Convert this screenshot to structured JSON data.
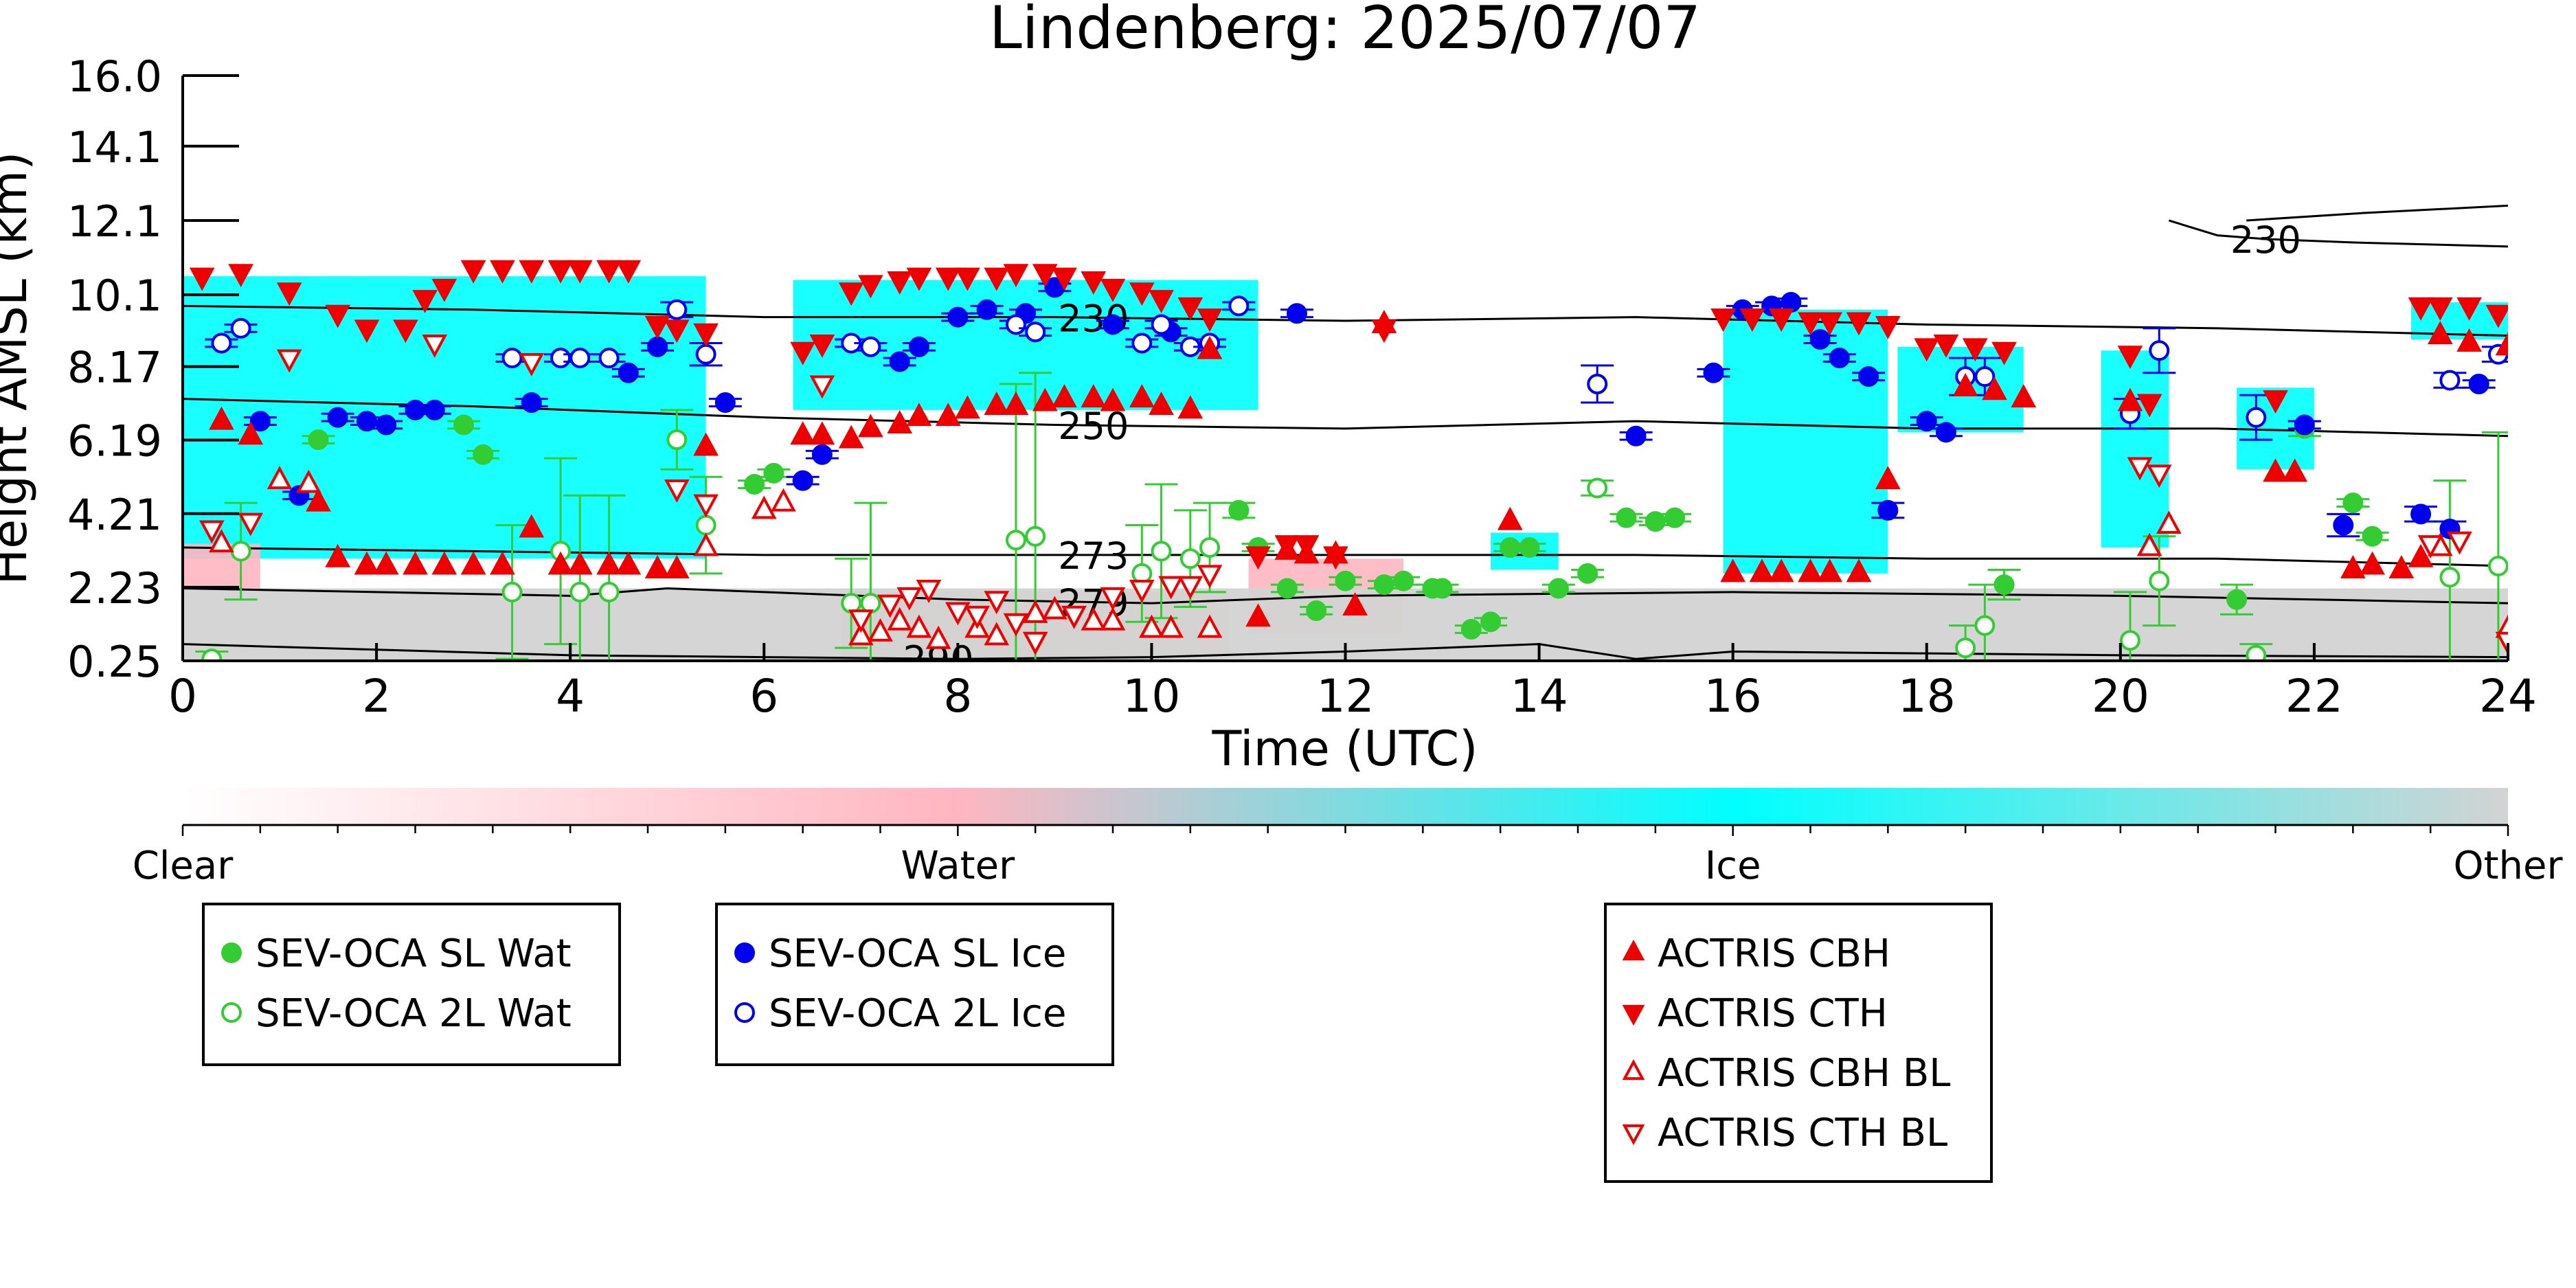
{
  "chart_data": {
    "type": "scatter",
    "title": "Lindenberg: 2025/07/07",
    "xlabel": "Time (UTC)",
    "ylabel": "Height AMSL (km)",
    "xlim": [
      0,
      24
    ],
    "ylim": [
      0.25,
      16.0
    ],
    "x_ticks": [
      0,
      2,
      4,
      6,
      8,
      10,
      12,
      14,
      16,
      18,
      20,
      22,
      24
    ],
    "y_ticks": [
      "0.25",
      "2.23",
      "4.21",
      "6.19",
      "8.17",
      "10.1",
      "12.1",
      "14.1",
      "16.0"
    ],
    "y_tick_values": [
      0.25,
      2.23,
      4.21,
      6.19,
      8.17,
      10.1,
      12.1,
      14.1,
      16.0
    ],
    "colorbar": {
      "categories": [
        "Clear",
        "Water",
        "Ice",
        "Other"
      ],
      "colors": [
        "#ffffff",
        "#ffb6c1",
        "#00ffff",
        "#d3d3d3"
      ]
    },
    "cloud_regions": [
      {
        "type": "Ice",
        "x0": 0.0,
        "x1": 5.4,
        "y0": 3.0,
        "y1": 10.6
      },
      {
        "type": "Ice",
        "x0": 6.3,
        "x1": 11.1,
        "y0": 7.0,
        "y1": 10.5
      },
      {
        "type": "Ice",
        "x0": 15.9,
        "x1": 17.6,
        "y0": 2.6,
        "y1": 9.7
      },
      {
        "type": "Ice",
        "x0": 17.7,
        "x1": 19.0,
        "y0": 6.4,
        "y1": 8.7
      },
      {
        "type": "Ice",
        "x0": 19.8,
        "x1": 20.5,
        "y0": 3.3,
        "y1": 8.6
      },
      {
        "type": "Ice",
        "x0": 21.2,
        "x1": 22.0,
        "y0": 5.4,
        "y1": 7.6
      },
      {
        "type": "Ice",
        "x0": 23.0,
        "x1": 24.0,
        "y0": 8.9,
        "y1": 9.9
      },
      {
        "type": "Ice",
        "x0": 13.5,
        "x1": 14.2,
        "y0": 2.7,
        "y1": 3.7
      },
      {
        "type": "Water",
        "x0": 6.8,
        "x1": 10.8,
        "y0": 0.35,
        "y1": 2.1
      },
      {
        "type": "Water",
        "x0": 11.0,
        "x1": 12.6,
        "y0": 1.0,
        "y1": 3.0
      },
      {
        "type": "Water",
        "x0": 0.0,
        "x1": 0.8,
        "y0": 2.2,
        "y1": 3.4
      },
      {
        "type": "Other",
        "x0": 0.0,
        "x1": 24.0,
        "y0": 0.25,
        "y1": 2.2
      }
    ],
    "isotherms": [
      {
        "label": "230",
        "label_x": 9.4,
        "x": [
          0,
          3,
          6,
          9,
          12,
          15,
          18,
          21,
          24
        ],
        "y": [
          9.8,
          9.7,
          9.5,
          9.5,
          9.4,
          9.5,
          9.3,
          9.2,
          9.0
        ]
      },
      {
        "label": "230",
        "label_x": 21.5,
        "x": [
          20.5,
          21.0,
          21.5,
          22.5,
          24
        ],
        "y": [
          12.1,
          11.7,
          11.6,
          11.5,
          11.4
        ]
      },
      {
        "label": "",
        "label_x": 0,
        "x": [
          21.3,
          22.5,
          24
        ],
        "y": [
          12.1,
          12.3,
          12.5
        ]
      },
      {
        "label": "250",
        "label_x": 9.4,
        "x": [
          0,
          3,
          6,
          9,
          12,
          15,
          18,
          21,
          24
        ],
        "y": [
          7.3,
          7.1,
          6.8,
          6.6,
          6.5,
          6.7,
          6.5,
          6.5,
          6.3
        ]
      },
      {
        "label": "273",
        "label_x": 9.4,
        "x": [
          0,
          3,
          6,
          9,
          12,
          15,
          18,
          21,
          24
        ],
        "y": [
          3.3,
          3.2,
          3.1,
          3.1,
          3.1,
          3.1,
          3.0,
          3.0,
          2.8
        ]
      },
      {
        "label": "279",
        "label_x": 9.4,
        "x": [
          0,
          2,
          4,
          5,
          6,
          8,
          10,
          12,
          16,
          20,
          24
        ],
        "y": [
          2.2,
          2.1,
          2.0,
          2.2,
          2.1,
          1.9,
          1.8,
          2.0,
          2.1,
          2.0,
          1.8
        ]
      },
      {
        "label": "290",
        "label_x": 7.8,
        "x": [
          0,
          2,
          4,
          6,
          8,
          10,
          12,
          13,
          14,
          14.5,
          15,
          16,
          18,
          20,
          24
        ],
        "y": [
          0.7,
          0.55,
          0.4,
          0.35,
          0.3,
          0.35,
          0.5,
          0.6,
          0.7,
          0.5,
          0.3,
          0.5,
          0.45,
          0.4,
          0.35
        ]
      }
    ],
    "series": [
      {
        "name": "SEV-OCA SL Wat",
        "marker": "circle",
        "filled": true,
        "color": "#33cc33",
        "x": [
          1.4,
          2.9,
          3.1,
          5.9,
          6.1,
          10.9,
          11.1,
          11.4,
          11.7,
          12.0,
          12.4,
          12.6,
          12.9,
          13.0,
          13.3,
          13.5,
          13.7,
          13.9,
          14.2,
          14.5,
          14.9,
          15.2,
          15.4,
          18.8,
          21.2,
          21.9,
          22.4,
          22.6
        ],
        "y": [
          6.2,
          6.6,
          5.8,
          5.0,
          5.3,
          4.3,
          3.3,
          2.2,
          1.6,
          2.4,
          2.3,
          2.4,
          2.2,
          2.2,
          1.1,
          1.3,
          3.3,
          3.3,
          2.2,
          2.6,
          4.1,
          4.0,
          4.1,
          2.3,
          1.9,
          6.5,
          4.5,
          3.6
        ],
        "err": [
          0.1,
          0.1,
          0.1,
          0.1,
          0.1,
          0.2,
          0.1,
          0.1,
          0.1,
          0.1,
          0.1,
          0.1,
          0.1,
          0.1,
          0.1,
          0.1,
          0.1,
          0.1,
          0.1,
          0.1,
          0.1,
          0.1,
          0.1,
          0.4,
          0.4,
          0.2,
          0.1,
          0.1
        ]
      },
      {
        "name": "SEV-OCA 2L Wat",
        "marker": "circle",
        "filled": false,
        "color": "#33cc33",
        "x": [
          0.3,
          0.6,
          3.4,
          3.9,
          4.1,
          4.4,
          5.1,
          5.4,
          6.9,
          7.1,
          8.6,
          8.8,
          9.9,
          10.1,
          10.4,
          10.6,
          14.6,
          18.4,
          18.6,
          20.1,
          20.4,
          21.4,
          23.4,
          23.9
        ],
        "y": [
          0.3,
          3.2,
          2.1,
          3.2,
          2.1,
          2.1,
          6.2,
          3.9,
          1.8,
          1.8,
          3.5,
          3.6,
          2.6,
          3.2,
          3.0,
          3.3,
          4.9,
          0.6,
          1.2,
          0.8,
          2.4,
          0.4,
          2.5,
          2.8
        ],
        "err": [
          0.2,
          1.3,
          1.8,
          2.5,
          2.6,
          2.6,
          0.8,
          1.3,
          1.2,
          2.7,
          4.2,
          4.4,
          1.3,
          1.8,
          1.3,
          1.2,
          0.2,
          0.6,
          1.1,
          1.3,
          1.2,
          0.3,
          2.6,
          3.6
        ]
      },
      {
        "name": "SEV-OCA SL Ice",
        "marker": "circle",
        "filled": true,
        "color": "#0000ee",
        "x": [
          0.8,
          1.2,
          1.6,
          1.9,
          2.1,
          2.4,
          2.6,
          3.6,
          4.6,
          4.9,
          5.6,
          6.4,
          6.6,
          7.4,
          7.6,
          8.0,
          8.3,
          8.7,
          9.0,
          9.6,
          10.2,
          11.5,
          15.0,
          15.8,
          16.1,
          16.4,
          16.6,
          16.9,
          17.1,
          17.4,
          17.6,
          18.0,
          18.2,
          21.9,
          22.3,
          23.1,
          23.4,
          23.7
        ],
        "y": [
          6.7,
          4.7,
          6.8,
          6.7,
          6.6,
          7.0,
          7.0,
          7.2,
          8.0,
          8.7,
          7.2,
          5.1,
          5.8,
          8.3,
          8.7,
          9.5,
          9.7,
          9.6,
          10.3,
          9.3,
          9.1,
          9.6,
          6.3,
          8.0,
          9.7,
          9.8,
          9.9,
          8.9,
          8.4,
          7.9,
          4.3,
          6.7,
          6.4,
          6.6,
          3.9,
          4.2,
          3.8,
          7.7
        ],
        "err": [
          0.1,
          0.1,
          0.1,
          0.1,
          0.1,
          0.1,
          0.1,
          0.1,
          0.1,
          0.1,
          0.1,
          0.1,
          0.1,
          0.1,
          0.1,
          0.1,
          0.1,
          0.1,
          0.1,
          0.1,
          0.1,
          0.1,
          0.1,
          0.1,
          0.1,
          0.1,
          0.1,
          0.1,
          0.1,
          0.1,
          0.2,
          0.1,
          0.1,
          0.1,
          0.3,
          0.2,
          0.2,
          0.1
        ]
      },
      {
        "name": "SEV-OCA 2L Ice",
        "marker": "circle",
        "filled": false,
        "color": "#0000ee",
        "x": [
          0.4,
          0.6,
          3.4,
          3.9,
          4.1,
          4.4,
          5.1,
          5.4,
          6.9,
          7.1,
          8.6,
          8.8,
          9.9,
          10.1,
          10.4,
          10.6,
          10.9,
          14.6,
          18.4,
          18.6,
          20.1,
          20.4,
          21.4,
          23.4,
          23.9
        ],
        "y": [
          8.8,
          9.2,
          8.4,
          8.4,
          8.4,
          8.4,
          9.7,
          8.5,
          8.8,
          8.7,
          9.3,
          9.1,
          8.8,
          9.3,
          8.7,
          8.8,
          9.8,
          7.7,
          7.9,
          7.9,
          6.9,
          8.6,
          6.8,
          7.8,
          8.5
        ],
        "err": [
          0.1,
          0.1,
          0.1,
          0.1,
          0.1,
          0.1,
          0.2,
          0.3,
          0.1,
          0.1,
          0.1,
          0.1,
          0.1,
          0.1,
          0.1,
          0.1,
          0.1,
          0.5,
          0.5,
          0.5,
          0.4,
          0.6,
          0.6,
          0.2,
          0.2
        ]
      },
      {
        "name": "ACTRIS CBH",
        "marker": "triangle-up",
        "filled": true,
        "color": "#ee0000",
        "x": [
          0.4,
          0.7,
          1.4,
          1.6,
          1.9,
          2.1,
          2.4,
          2.7,
          3.0,
          3.3,
          3.6,
          3.9,
          4.1,
          4.4,
          4.6,
          4.9,
          5.1,
          5.4,
          6.4,
          6.6,
          6.9,
          7.1,
          7.4,
          7.6,
          7.9,
          8.1,
          8.4,
          8.6,
          8.9,
          9.1,
          9.4,
          9.6,
          9.9,
          10.1,
          10.4,
          10.6,
          11.1,
          11.4,
          11.6,
          11.9,
          12.1,
          12.4,
          13.7,
          16.0,
          16.3,
          16.5,
          16.8,
          17.0,
          17.3,
          17.6,
          18.4,
          18.7,
          19.0,
          20.1,
          21.6,
          21.8,
          22.4,
          22.6,
          22.9,
          23.1,
          23.3,
          23.6,
          24.0
        ],
        "y": [
          6.7,
          6.3,
          4.5,
          3.0,
          2.8,
          2.8,
          2.8,
          2.8,
          2.8,
          2.8,
          3.8,
          2.8,
          2.8,
          2.8,
          2.8,
          2.7,
          2.7,
          6.0,
          6.3,
          6.3,
          6.2,
          6.5,
          6.6,
          6.8,
          6.8,
          7.0,
          7.1,
          7.1,
          7.2,
          7.3,
          7.3,
          7.2,
          7.3,
          7.1,
          7.0,
          8.6,
          1.4,
          3.2,
          3.1,
          3.1,
          1.7,
          9.3,
          4.0,
          2.6,
          2.6,
          2.6,
          2.6,
          2.6,
          2.6,
          5.1,
          7.6,
          7.5,
          7.3,
          7.2,
          5.3,
          5.3,
          2.7,
          2.8,
          2.7,
          3.0,
          9.0,
          8.8,
          8.7
        ],
        "err": []
      },
      {
        "name": "ACTRIS CTH",
        "marker": "triangle-down",
        "filled": true,
        "color": "#ee0000",
        "x": [
          0.2,
          0.6,
          1.1,
          1.6,
          1.9,
          2.3,
          2.5,
          2.7,
          3.0,
          3.3,
          3.6,
          3.9,
          4.1,
          4.4,
          4.6,
          4.9,
          5.1,
          5.4,
          6.4,
          6.6,
          6.9,
          7.1,
          7.4,
          7.6,
          7.9,
          8.1,
          8.4,
          8.6,
          8.9,
          9.1,
          9.4,
          9.6,
          9.9,
          10.1,
          10.4,
          10.6,
          11.1,
          11.4,
          11.6,
          11.9,
          12.4,
          15.9,
          16.2,
          16.5,
          16.8,
          17.0,
          17.3,
          17.6,
          18.0,
          18.2,
          18.5,
          18.8,
          20.1,
          20.3,
          21.6,
          23.1,
          23.3,
          23.6,
          23.9
        ],
        "y": [
          10.6,
          10.7,
          10.2,
          9.6,
          9.2,
          9.2,
          10.0,
          10.3,
          10.8,
          10.8,
          10.8,
          10.8,
          10.8,
          10.8,
          10.8,
          9.3,
          9.2,
          9.1,
          8.6,
          8.8,
          10.2,
          10.4,
          10.5,
          10.6,
          10.6,
          10.6,
          10.6,
          10.7,
          10.7,
          10.6,
          10.5,
          10.3,
          10.2,
          10.0,
          9.8,
          9.5,
          3.1,
          3.4,
          3.4,
          3.1,
          9.2,
          9.5,
          9.5,
          9.5,
          9.4,
          9.4,
          9.4,
          9.3,
          8.7,
          8.8,
          8.7,
          8.6,
          8.5,
          7.2,
          7.3,
          9.8,
          9.8,
          9.8,
          9.6
        ],
        "err": []
      },
      {
        "name": "ACTRIS CBH BL",
        "marker": "triangle-up",
        "filled": false,
        "color": "#ee0000",
        "x": [
          0.4,
          1.0,
          1.3,
          5.4,
          6.0,
          6.2,
          7.0,
          7.2,
          7.4,
          7.6,
          7.8,
          8.2,
          8.4,
          8.8,
          9.0,
          9.4,
          9.6,
          10.0,
          10.2,
          10.6,
          20.3,
          20.5,
          23.3,
          24.0
        ],
        "y": [
          3.4,
          5.1,
          5.0,
          3.3,
          4.3,
          4.5,
          0.9,
          1.0,
          1.3,
          1.1,
          0.8,
          1.1,
          0.9,
          1.5,
          1.6,
          1.3,
          1.3,
          1.1,
          1.1,
          1.1,
          3.3,
          3.9,
          3.3,
          1.1
        ],
        "err": []
      },
      {
        "name": "ACTRIS CTH BL",
        "marker": "triangle-down",
        "filled": false,
        "color": "#ee0000",
        "x": [
          0.3,
          0.7,
          1.1,
          2.6,
          3.6,
          5.1,
          5.4,
          6.6,
          7.0,
          7.3,
          7.5,
          7.7,
          8.0,
          8.2,
          8.4,
          8.6,
          8.8,
          9.2,
          9.6,
          9.9,
          10.2,
          10.4,
          10.6,
          20.2,
          20.4,
          23.2,
          23.5,
          24.0
        ],
        "y": [
          3.8,
          4.0,
          8.4,
          8.8,
          8.3,
          4.9,
          4.5,
          7.7,
          1.4,
          1.8,
          2.0,
          2.2,
          1.6,
          1.5,
          1.9,
          1.3,
          0.8,
          1.5,
          2.0,
          2.2,
          2.3,
          2.3,
          2.6,
          5.5,
          5.3,
          3.4,
          3.5,
          0.8
        ],
        "err": []
      }
    ],
    "legend": {
      "group1": [
        "SEV-OCA SL Wat",
        "SEV-OCA 2L Wat"
      ],
      "group2": [
        "SEV-OCA SL Ice",
        "SEV-OCA 2L Ice"
      ],
      "group3": [
        "ACTRIS CBH",
        "ACTRIS CTH",
        "ACTRIS CBH BL",
        "ACTRIS CTH BL"
      ],
      "placement": "below"
    }
  }
}
